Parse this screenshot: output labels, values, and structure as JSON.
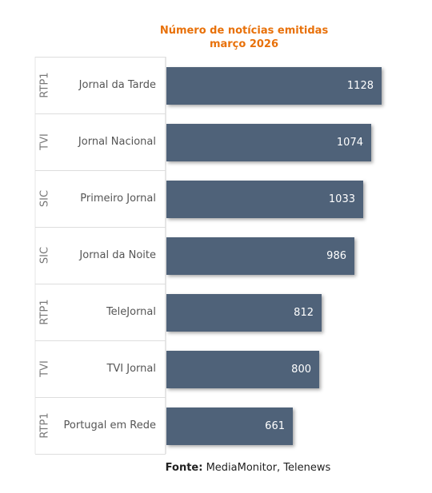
{
  "chart_data": {
    "type": "bar",
    "orientation": "horizontal",
    "title": "Número de notícias emitidas",
    "subtitle": "março 2026",
    "categories": [
      "Jornal da Tarde",
      "Jornal Nacional",
      "Primeiro Jornal",
      "Jornal da Noite",
      "TeleJornal",
      "TVI Jornal",
      "Portugal em Rede"
    ],
    "groups": [
      "RTP1",
      "TVI",
      "SIC",
      "SIC",
      "RTP1",
      "TVI",
      "RTP1"
    ],
    "values": [
      1128,
      1074,
      1033,
      986,
      812,
      800,
      661
    ],
    "bar_color": "#4f6279",
    "title_color": "#e8710a",
    "xlim": [
      0,
      1128
    ],
    "grid": false
  },
  "source": {
    "label": "Fonte:",
    "text": "MediaMonitor, Telenews"
  }
}
